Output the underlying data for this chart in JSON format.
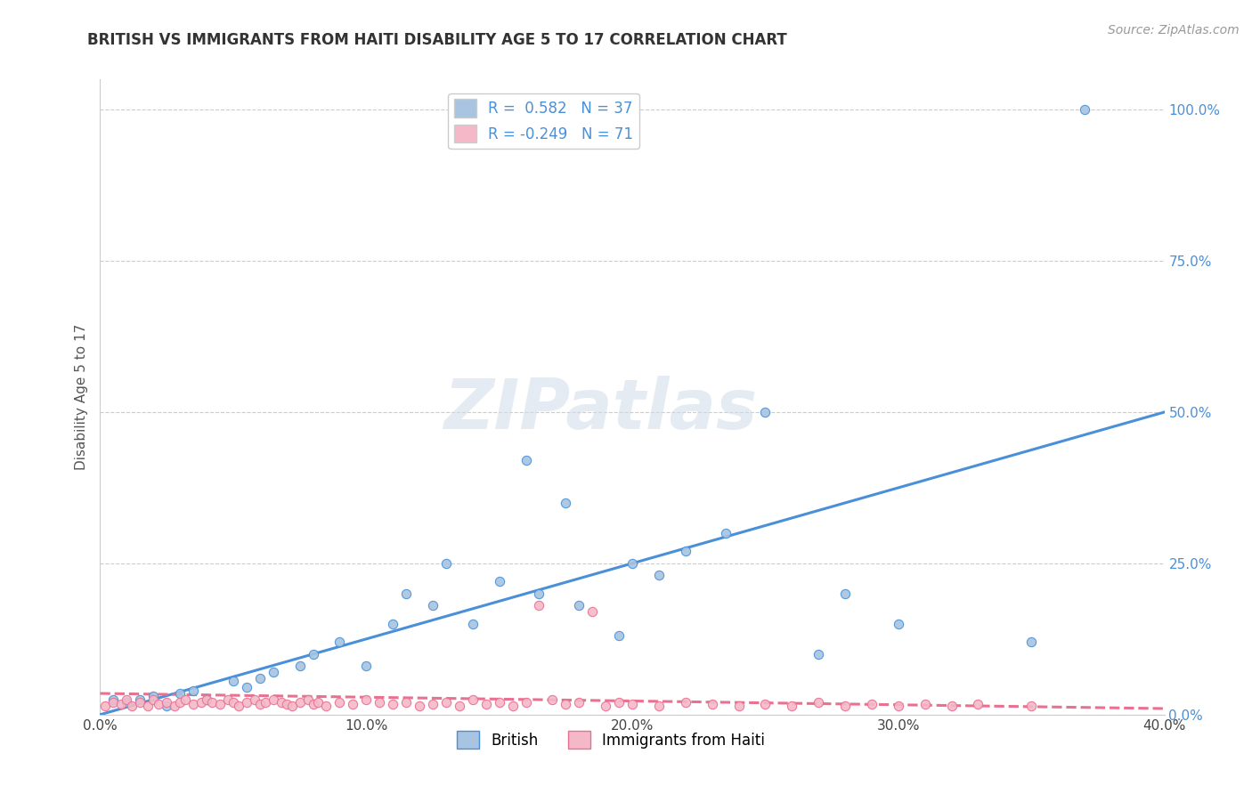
{
  "title": "BRITISH VS IMMIGRANTS FROM HAITI DISABILITY AGE 5 TO 17 CORRELATION CHART",
  "source": "Source: ZipAtlas.com",
  "ylabel": "Disability Age 5 to 17",
  "xlim": [
    0.0,
    40.0
  ],
  "ylim": [
    0.0,
    105.0
  ],
  "x_ticks": [
    0.0,
    10.0,
    20.0,
    30.0,
    40.0
  ],
  "x_tick_labels": [
    "0.0%",
    "10.0%",
    "20.0%",
    "30.0%",
    "40.0%"
  ],
  "y_ticks_right": [
    0.0,
    25.0,
    50.0,
    75.0,
    100.0
  ],
  "y_tick_labels_right": [
    "0.0%",
    "25.0%",
    "50.0%",
    "75.0%",
    "100.0%"
  ],
  "british_R": 0.582,
  "british_N": 37,
  "haiti_R": -0.249,
  "haiti_N": 71,
  "british_color": "#a8c4e0",
  "haiti_color": "#f4b8c8",
  "british_line_color": "#4a90d9",
  "haiti_line_color": "#e87090",
  "watermark": "ZIPatlas",
  "legend_label_british": "British",
  "legend_label_haiti": "Immigrants from Haiti",
  "british_scatter": [
    [
      0.5,
      2.5
    ],
    [
      1.0,
      2.0
    ],
    [
      1.5,
      2.5
    ],
    [
      2.0,
      3.0
    ],
    [
      2.5,
      1.5
    ],
    [
      3.0,
      3.5
    ],
    [
      3.5,
      4.0
    ],
    [
      4.0,
      2.5
    ],
    [
      5.0,
      5.5
    ],
    [
      5.5,
      4.5
    ],
    [
      6.0,
      6.0
    ],
    [
      6.5,
      7.0
    ],
    [
      7.5,
      8.0
    ],
    [
      8.0,
      10.0
    ],
    [
      9.0,
      12.0
    ],
    [
      10.0,
      8.0
    ],
    [
      11.0,
      15.0
    ],
    [
      11.5,
      20.0
    ],
    [
      12.5,
      18.0
    ],
    [
      13.0,
      25.0
    ],
    [
      14.0,
      15.0
    ],
    [
      15.0,
      22.0
    ],
    [
      16.5,
      20.0
    ],
    [
      18.0,
      18.0
    ],
    [
      19.5,
      13.0
    ],
    [
      16.0,
      42.0
    ],
    [
      17.5,
      35.0
    ],
    [
      20.0,
      25.0
    ],
    [
      21.0,
      23.0
    ],
    [
      22.0,
      27.0
    ],
    [
      23.5,
      30.0
    ],
    [
      25.0,
      50.0
    ],
    [
      27.0,
      10.0
    ],
    [
      28.0,
      20.0
    ],
    [
      30.0,
      15.0
    ],
    [
      35.0,
      12.0
    ],
    [
      37.0,
      100.0
    ]
  ],
  "haiti_scatter": [
    [
      0.2,
      1.5
    ],
    [
      0.5,
      2.0
    ],
    [
      0.8,
      1.8
    ],
    [
      1.0,
      2.5
    ],
    [
      1.2,
      1.5
    ],
    [
      1.5,
      2.0
    ],
    [
      1.8,
      1.5
    ],
    [
      2.0,
      2.5
    ],
    [
      2.2,
      1.8
    ],
    [
      2.5,
      2.0
    ],
    [
      2.8,
      1.5
    ],
    [
      3.0,
      2.0
    ],
    [
      3.2,
      2.5
    ],
    [
      3.5,
      1.8
    ],
    [
      3.8,
      2.0
    ],
    [
      4.0,
      2.5
    ],
    [
      4.2,
      2.0
    ],
    [
      4.5,
      1.8
    ],
    [
      4.8,
      2.5
    ],
    [
      5.0,
      2.0
    ],
    [
      5.2,
      1.5
    ],
    [
      5.5,
      2.0
    ],
    [
      5.8,
      2.5
    ],
    [
      6.0,
      1.8
    ],
    [
      6.2,
      2.0
    ],
    [
      6.5,
      2.5
    ],
    [
      6.8,
      2.0
    ],
    [
      7.0,
      1.8
    ],
    [
      7.2,
      1.5
    ],
    [
      7.5,
      2.0
    ],
    [
      7.8,
      2.5
    ],
    [
      8.0,
      1.8
    ],
    [
      8.2,
      2.0
    ],
    [
      8.5,
      1.5
    ],
    [
      9.0,
      2.0
    ],
    [
      9.5,
      1.8
    ],
    [
      10.0,
      2.5
    ],
    [
      10.5,
      2.0
    ],
    [
      11.0,
      1.8
    ],
    [
      11.5,
      2.0
    ],
    [
      12.0,
      1.5
    ],
    [
      12.5,
      1.8
    ],
    [
      13.0,
      2.0
    ],
    [
      13.5,
      1.5
    ],
    [
      14.0,
      2.5
    ],
    [
      14.5,
      1.8
    ],
    [
      15.0,
      2.0
    ],
    [
      15.5,
      1.5
    ],
    [
      16.0,
      2.0
    ],
    [
      16.5,
      18.0
    ],
    [
      17.0,
      2.5
    ],
    [
      17.5,
      1.8
    ],
    [
      18.0,
      2.0
    ],
    [
      18.5,
      17.0
    ],
    [
      19.0,
      1.5
    ],
    [
      19.5,
      2.0
    ],
    [
      20.0,
      1.8
    ],
    [
      21.0,
      1.5
    ],
    [
      22.0,
      2.0
    ],
    [
      23.0,
      1.8
    ],
    [
      24.0,
      1.5
    ],
    [
      25.0,
      1.8
    ],
    [
      26.0,
      1.5
    ],
    [
      27.0,
      2.0
    ],
    [
      28.0,
      1.5
    ],
    [
      29.0,
      1.8
    ],
    [
      30.0,
      1.5
    ],
    [
      31.0,
      1.8
    ],
    [
      32.0,
      1.5
    ],
    [
      33.0,
      1.8
    ],
    [
      35.0,
      1.5
    ]
  ],
  "british_line": [
    [
      0.0,
      0.0
    ],
    [
      40.0,
      50.0
    ]
  ],
  "haiti_line": [
    [
      0.0,
      3.5
    ],
    [
      40.0,
      1.0
    ]
  ]
}
